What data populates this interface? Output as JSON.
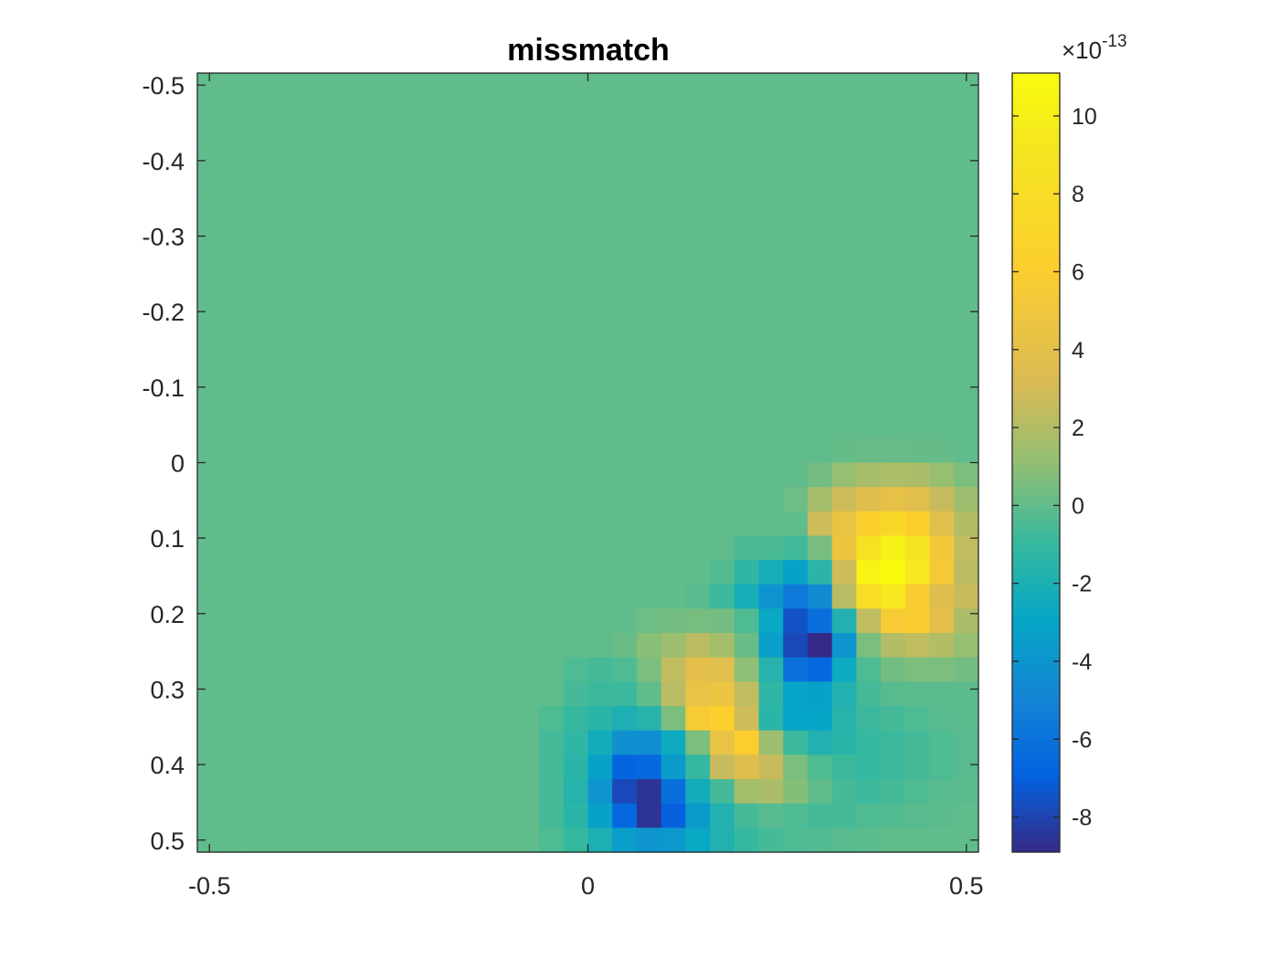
{
  "chart_data": {
    "type": "heatmap",
    "title": "missmatch",
    "xlabel": "",
    "ylabel": "",
    "x_ticks": [
      "-0.5",
      "0",
      "0.5"
    ],
    "x_tick_values": [
      -0.5,
      0,
      0.5
    ],
    "y_ticks": [
      "-0.5",
      "-0.4",
      "-0.3",
      "-0.2",
      "-0.1",
      "0",
      "0.1",
      "0.2",
      "0.3",
      "0.4",
      "0.5"
    ],
    "y_tick_values": [
      -0.5,
      -0.4,
      -0.3,
      -0.2,
      -0.1,
      0,
      0.1,
      0.2,
      0.3,
      0.4,
      0.5
    ],
    "xlim": [
      -0.516,
      0.516
    ],
    "ylim": [
      -0.516,
      0.516
    ],
    "y_direction": "reversed",
    "colormap": "parula",
    "colorbar": {
      "exponent_label": "×10",
      "exponent_power": "-13",
      "ticks": [
        "10",
        "8",
        "6",
        "4",
        "2",
        "0",
        "-2",
        "-4",
        "-6",
        "-8"
      ],
      "tick_values": [
        10,
        8,
        6,
        4,
        2,
        0,
        -2,
        -4,
        -6,
        -8
      ],
      "range": [
        -8.9,
        11.1
      ]
    },
    "grid": {
      "rows": 32,
      "cols": 32,
      "x_start": -0.516,
      "x_end": 0.516,
      "y_start": -0.516,
      "y_end": 0.516,
      "background_value": 0
    },
    "cells_note": "nonzero cells listed as [row, col, value x1e-13]; all other cells 0",
    "cells": [
      [
        15,
        29,
        0.1
      ],
      [
        15,
        30,
        0.1
      ],
      [
        15,
        26,
        0.1
      ],
      [
        15,
        27,
        0.2
      ],
      [
        15,
        28,
        0.2
      ],
      [
        16,
        25,
        0.4
      ],
      [
        16,
        26,
        1.2
      ],
      [
        16,
        27,
        1.7
      ],
      [
        16,
        28,
        1.9
      ],
      [
        16,
        29,
        1.8
      ],
      [
        16,
        30,
        1.2
      ],
      [
        16,
        31,
        0.6
      ],
      [
        17,
        24,
        0.3
      ],
      [
        17,
        25,
        1.6
      ],
      [
        17,
        26,
        2.8
      ],
      [
        17,
        27,
        3.6
      ],
      [
        17,
        28,
        4.2
      ],
      [
        17,
        29,
        3.8
      ],
      [
        17,
        30,
        2.6
      ],
      [
        17,
        31,
        1.4
      ],
      [
        18,
        25,
        2.8
      ],
      [
        18,
        26,
        4.5
      ],
      [
        18,
        27,
        6.4
      ],
      [
        18,
        28,
        7.3
      ],
      [
        18,
        29,
        6.4
      ],
      [
        18,
        30,
        3.8
      ],
      [
        18,
        31,
        2.0
      ],
      [
        19,
        22,
        -0.5
      ],
      [
        19,
        23,
        -0.5
      ],
      [
        19,
        24,
        -0.7
      ],
      [
        19,
        25,
        0.5
      ],
      [
        19,
        26,
        4.8
      ],
      [
        19,
        27,
        8.6
      ],
      [
        19,
        28,
        10.2
      ],
      [
        19,
        29,
        9.0
      ],
      [
        19,
        30,
        5.2
      ],
      [
        19,
        31,
        2.4
      ],
      [
        20,
        21,
        -0.3
      ],
      [
        20,
        22,
        -1.2
      ],
      [
        20,
        23,
        -2.2
      ],
      [
        20,
        24,
        -3.2
      ],
      [
        20,
        25,
        -1.4
      ],
      [
        20,
        26,
        2.8
      ],
      [
        20,
        27,
        10.4
      ],
      [
        20,
        28,
        11.1
      ],
      [
        20,
        29,
        9.4
      ],
      [
        20,
        30,
        5.4
      ],
      [
        20,
        31,
        2.2
      ],
      [
        21,
        20,
        -0.2
      ],
      [
        21,
        21,
        -0.8
      ],
      [
        21,
        22,
        -2.2
      ],
      [
        21,
        23,
        -4.0
      ],
      [
        21,
        24,
        -5.6
      ],
      [
        21,
        25,
        -4.6
      ],
      [
        21,
        26,
        2.2
      ],
      [
        21,
        27,
        8.0
      ],
      [
        21,
        28,
        9.4
      ],
      [
        21,
        29,
        5.8
      ],
      [
        21,
        30,
        3.6
      ],
      [
        21,
        31,
        2.6
      ],
      [
        22,
        18,
        0.3
      ],
      [
        22,
        19,
        0.4
      ],
      [
        22,
        20,
        0.5
      ],
      [
        22,
        21,
        0.4
      ],
      [
        22,
        22,
        -0.4
      ],
      [
        22,
        23,
        -2.8
      ],
      [
        22,
        24,
        -7.5
      ],
      [
        22,
        25,
        -6.2
      ],
      [
        22,
        26,
        -1.8
      ],
      [
        22,
        27,
        2.4
      ],
      [
        22,
        28,
        5.6
      ],
      [
        22,
        29,
        5.8
      ],
      [
        22,
        30,
        3.9
      ],
      [
        22,
        31,
        1.8
      ],
      [
        23,
        17,
        0.2
      ],
      [
        23,
        18,
        0.9
      ],
      [
        23,
        19,
        1.4
      ],
      [
        23,
        20,
        2.2
      ],
      [
        23,
        21,
        1.6
      ],
      [
        23,
        22,
        0.2
      ],
      [
        23,
        23,
        -3.4
      ],
      [
        23,
        24,
        -7.8
      ],
      [
        23,
        25,
        -9.0
      ],
      [
        23,
        26,
        -4.0
      ],
      [
        23,
        27,
        0.6
      ],
      [
        23,
        28,
        2.0
      ],
      [
        23,
        29,
        2.4
      ],
      [
        23,
        30,
        2.0
      ],
      [
        23,
        31,
        1.2
      ],
      [
        24,
        15,
        -0.4
      ],
      [
        24,
        16,
        -0.6
      ],
      [
        24,
        17,
        -0.4
      ],
      [
        24,
        18,
        0.6
      ],
      [
        24,
        19,
        2.4
      ],
      [
        24,
        20,
        4.0
      ],
      [
        24,
        21,
        3.8
      ],
      [
        24,
        22,
        1.0
      ],
      [
        24,
        23,
        -1.6
      ],
      [
        24,
        24,
        -6.0
      ],
      [
        24,
        25,
        -6.6
      ],
      [
        24,
        26,
        -2.6
      ],
      [
        24,
        27,
        -0.4
      ],
      [
        24,
        28,
        0.4
      ],
      [
        24,
        29,
        0.6
      ],
      [
        24,
        30,
        0.6
      ],
      [
        24,
        31,
        0.4
      ],
      [
        25,
        15,
        -0.6
      ],
      [
        25,
        16,
        -0.8
      ],
      [
        25,
        17,
        -0.8
      ],
      [
        25,
        18,
        0.0
      ],
      [
        25,
        19,
        2.2
      ],
      [
        25,
        20,
        4.4
      ],
      [
        25,
        21,
        4.6
      ],
      [
        25,
        22,
        2.4
      ],
      [
        25,
        23,
        -1.2
      ],
      [
        25,
        24,
        -3.0
      ],
      [
        25,
        25,
        -3.2
      ],
      [
        25,
        26,
        -1.8
      ],
      [
        25,
        27,
        -0.6
      ],
      [
        25,
        28,
        -0.2
      ],
      [
        25,
        29,
        -0.1
      ],
      [
        25,
        30,
        -0.1
      ],
      [
        25,
        31,
        -0.1
      ],
      [
        26,
        14,
        -0.4
      ],
      [
        26,
        15,
        -1.0
      ],
      [
        26,
        16,
        -1.4
      ],
      [
        26,
        17,
        -2.0
      ],
      [
        26,
        18,
        -1.6
      ],
      [
        26,
        19,
        0.6
      ],
      [
        26,
        20,
        5.6
      ],
      [
        26,
        21,
        6.2
      ],
      [
        26,
        22,
        2.8
      ],
      [
        26,
        23,
        -1.4
      ],
      [
        26,
        24,
        -3.0
      ],
      [
        26,
        25,
        -3.0
      ],
      [
        26,
        26,
        -1.6
      ],
      [
        26,
        27,
        -0.8
      ],
      [
        26,
        28,
        -0.6
      ],
      [
        26,
        29,
        -0.4
      ],
      [
        26,
        30,
        -0.2
      ],
      [
        26,
        31,
        -0.1
      ],
      [
        27,
        14,
        -0.6
      ],
      [
        27,
        15,
        -1.2
      ],
      [
        27,
        16,
        -2.4
      ],
      [
        27,
        17,
        -4.2
      ],
      [
        27,
        18,
        -4.4
      ],
      [
        27,
        19,
        -2.6
      ],
      [
        27,
        20,
        0.6
      ],
      [
        27,
        21,
        4.4
      ],
      [
        27,
        22,
        6.0
      ],
      [
        27,
        23,
        1.4
      ],
      [
        27,
        24,
        -0.8
      ],
      [
        27,
        25,
        -1.8
      ],
      [
        27,
        26,
        -1.4
      ],
      [
        27,
        27,
        -1.0
      ],
      [
        27,
        28,
        -0.8
      ],
      [
        27,
        29,
        -0.6
      ],
      [
        27,
        30,
        -0.4
      ],
      [
        27,
        31,
        -0.2
      ],
      [
        28,
        14,
        -0.6
      ],
      [
        28,
        15,
        -1.4
      ],
      [
        28,
        16,
        -3.2
      ],
      [
        28,
        17,
        -6.8
      ],
      [
        28,
        18,
        -6.6
      ],
      [
        28,
        19,
        -3.6
      ],
      [
        28,
        20,
        -1.0
      ],
      [
        28,
        21,
        2.6
      ],
      [
        28,
        22,
        3.6
      ],
      [
        28,
        23,
        2.6
      ],
      [
        28,
        24,
        0.6
      ],
      [
        28,
        25,
        -0.4
      ],
      [
        28,
        26,
        -0.8
      ],
      [
        28,
        27,
        -1.0
      ],
      [
        28,
        28,
        -0.8
      ],
      [
        28,
        29,
        -0.6
      ],
      [
        28,
        30,
        -0.4
      ],
      [
        28,
        31,
        -0.2
      ],
      [
        29,
        14,
        -0.6
      ],
      [
        29,
        15,
        -1.6
      ],
      [
        29,
        16,
        -4.0
      ],
      [
        29,
        17,
        -7.8
      ],
      [
        29,
        18,
        -8.6
      ],
      [
        29,
        19,
        -6.2
      ],
      [
        29,
        20,
        -2.4
      ],
      [
        29,
        21,
        -0.6
      ],
      [
        29,
        22,
        1.6
      ],
      [
        29,
        23,
        1.8
      ],
      [
        29,
        24,
        0.8
      ],
      [
        29,
        25,
        0.0
      ],
      [
        29,
        26,
        -0.6
      ],
      [
        29,
        27,
        -0.8
      ],
      [
        29,
        28,
        -0.6
      ],
      [
        29,
        29,
        -0.4
      ],
      [
        29,
        30,
        -0.2
      ],
      [
        29,
        31,
        -0.1
      ],
      [
        30,
        14,
        -0.6
      ],
      [
        30,
        15,
        -1.4
      ],
      [
        30,
        16,
        -3.2
      ],
      [
        30,
        17,
        -6.6
      ],
      [
        30,
        18,
        -8.6
      ],
      [
        30,
        19,
        -7.0
      ],
      [
        30,
        20,
        -3.6
      ],
      [
        30,
        21,
        -1.8
      ],
      [
        30,
        22,
        -0.6
      ],
      [
        30,
        23,
        -0.2
      ],
      [
        30,
        24,
        -0.4
      ],
      [
        30,
        25,
        -0.6
      ],
      [
        30,
        26,
        -0.6
      ],
      [
        30,
        27,
        -0.4
      ],
      [
        30,
        28,
        -0.3
      ],
      [
        30,
        29,
        -0.2
      ],
      [
        30,
        30,
        -0.1
      ],
      [
        31,
        14,
        -0.4
      ],
      [
        31,
        15,
        -1.0
      ],
      [
        31,
        16,
        -2.0
      ],
      [
        31,
        17,
        -3.4
      ],
      [
        31,
        18,
        -4.0
      ],
      [
        31,
        19,
        -3.8
      ],
      [
        31,
        20,
        -2.8
      ],
      [
        31,
        21,
        -1.8
      ],
      [
        31,
        22,
        -1.0
      ],
      [
        31,
        23,
        -0.6
      ],
      [
        31,
        24,
        -0.4
      ],
      [
        31,
        25,
        -0.3
      ],
      [
        31,
        26,
        -0.2
      ],
      [
        31,
        27,
        -0.1
      ]
    ]
  }
}
